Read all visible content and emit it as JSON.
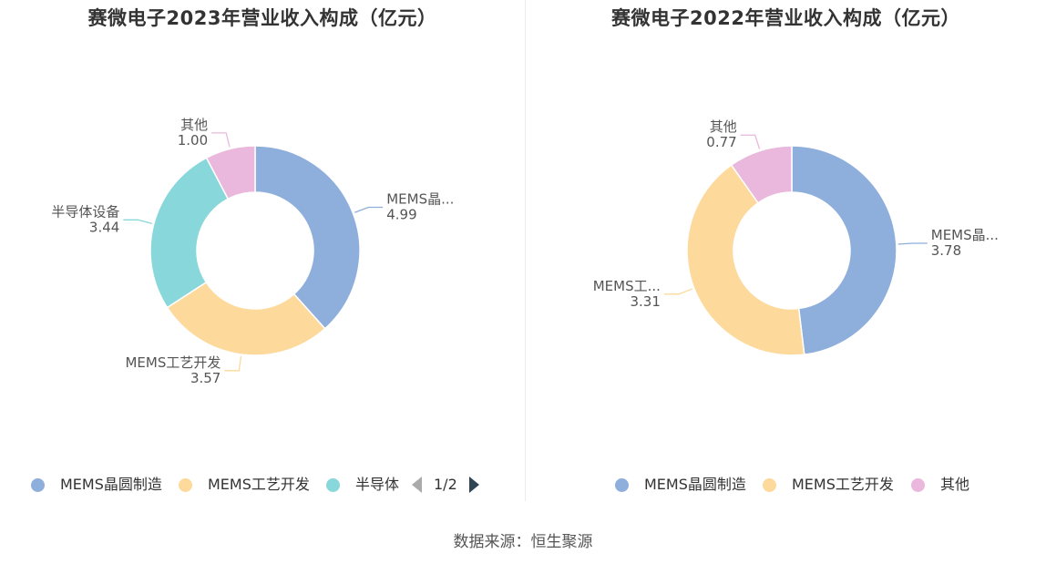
{
  "source": "数据来源：恒生聚源",
  "charts": [
    {
      "title": "赛微电子2023年营业收入构成（亿元）",
      "legend_items": [
        {
          "label": "MEMS晶圆制造",
          "color": "#8eaedc"
        },
        {
          "label": "MEMS工艺开发",
          "color": "#fdd99b"
        },
        {
          "label": "半导体",
          "color": "#88d7da"
        }
      ],
      "pager": "1/2"
    },
    {
      "title": "赛微电子2022年营业收入构成（亿元）",
      "legend_items": [
        {
          "label": "MEMS晶圆制造",
          "color": "#8eaedc"
        },
        {
          "label": "MEMS工艺开发",
          "color": "#fdd99b"
        },
        {
          "label": "其他",
          "color": "#e9b8dc"
        }
      ]
    }
  ],
  "chart_data": [
    {
      "type": "pie",
      "title": "赛微电子2023年营业收入构成（亿元）",
      "donut": true,
      "unit": "亿元",
      "slices": [
        {
          "name": "MEMS晶圆制造",
          "label": "MEMS晶...",
          "value": 4.99,
          "display": "4.99",
          "color": "#8eaedc"
        },
        {
          "name": "MEMS工艺开发",
          "label": "MEMS工艺开发",
          "value": 3.57,
          "display": "3.57",
          "color": "#fdd99b"
        },
        {
          "name": "半导体设备",
          "label": "半导体设备",
          "value": 3.44,
          "display": "3.44",
          "color": "#88d7da"
        },
        {
          "name": "其他",
          "label": "其他",
          "value": 1.0,
          "display": "1.00",
          "color": "#e9b8dc"
        }
      ]
    },
    {
      "type": "pie",
      "title": "赛微电子2022年营业收入构成（亿元）",
      "donut": true,
      "unit": "亿元",
      "slices": [
        {
          "name": "MEMS晶圆制造",
          "label": "MEMS晶...",
          "value": 3.78,
          "display": "3.78",
          "color": "#8eaedc"
        },
        {
          "name": "MEMS工艺开发",
          "label": "MEMS工...",
          "value": 3.31,
          "display": "3.31",
          "color": "#fdd99b"
        },
        {
          "name": "其他",
          "label": "其他",
          "value": 0.77,
          "display": "0.77",
          "color": "#e9b8dc"
        }
      ]
    }
  ]
}
